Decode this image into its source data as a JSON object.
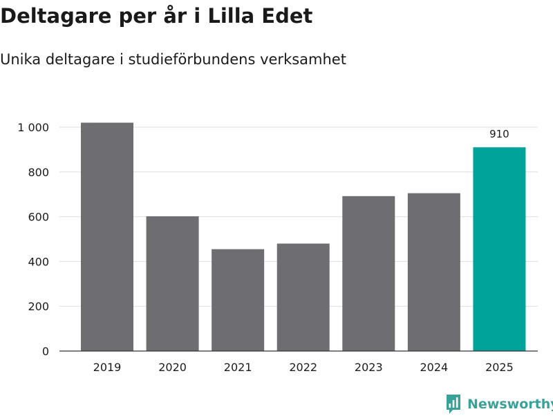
{
  "title": "Deltagare per år i Lilla Edet",
  "subtitle": "Unika deltagare i studieförbundens verksamhet",
  "brand": {
    "name": "Newsworthy",
    "icon": "newsworthy-logo-icon"
  },
  "colors": {
    "bar": "#6e6d72",
    "highlight": "#00a39a",
    "grid": "#dddddd",
    "axis": "#333333",
    "text": "#1a1a1a",
    "brand": "#3aa198"
  },
  "chart_data": {
    "type": "bar",
    "title": "Deltagare per år i Lilla Edet",
    "subtitle": "Unika deltagare i studieförbundens verksamhet",
    "categories": [
      "2019",
      "2020",
      "2021",
      "2022",
      "2023",
      "2024",
      "2025"
    ],
    "values": [
      1020,
      602,
      455,
      480,
      692,
      705,
      910
    ],
    "highlight_index": 6,
    "data_labels": [
      {
        "index": 6,
        "text": "910"
      }
    ],
    "xlabel": "",
    "ylabel": "",
    "ylim": [
      0,
      1000
    ],
    "yticks": [
      0,
      200,
      400,
      600,
      800,
      1000
    ],
    "ytick_labels": [
      "0",
      "200",
      "400",
      "600",
      "800",
      "1 000"
    ],
    "grid": true,
    "legend": "none"
  }
}
